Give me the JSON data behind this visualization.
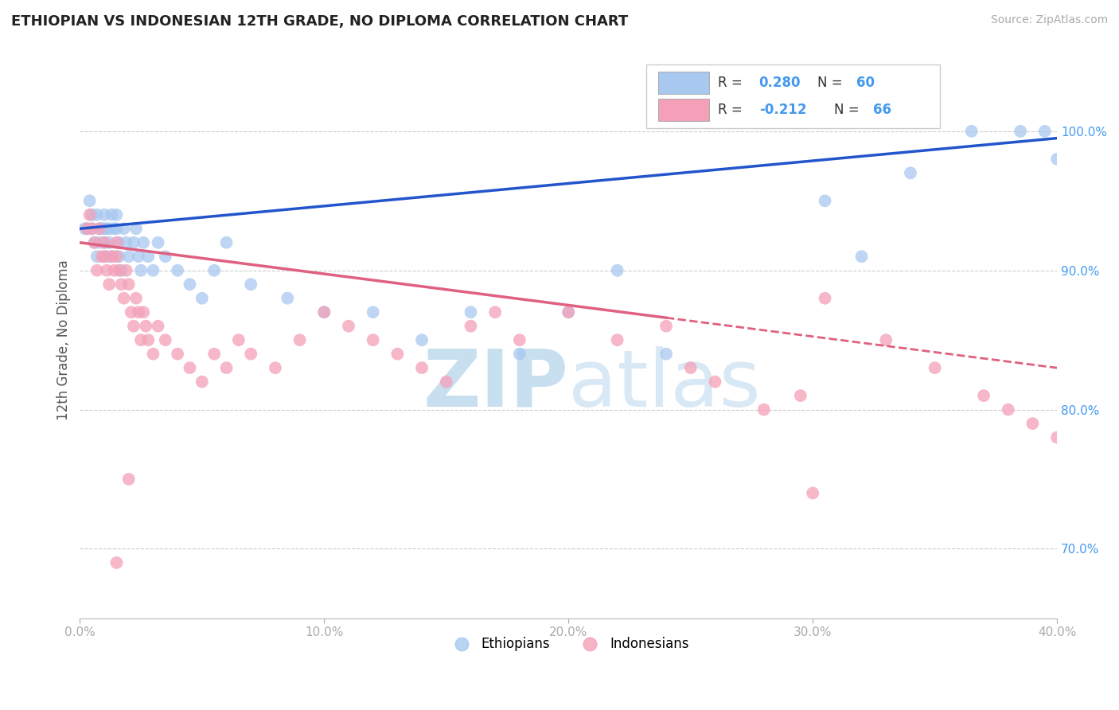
{
  "title": "ETHIOPIAN VS INDONESIAN 12TH GRADE, NO DIPLOMA CORRELATION CHART",
  "source": "Source: ZipAtlas.com",
  "ylabel": "12th Grade, No Diploma",
  "xlim": [
    0.0,
    40.0
  ],
  "ylim": [
    65.0,
    105.0
  ],
  "yticks": [
    70.0,
    80.0,
    90.0,
    100.0
  ],
  "xticks": [
    0.0,
    10.0,
    20.0,
    30.0,
    40.0
  ],
  "color_ethiopian": "#A8C8F0",
  "color_indonesian": "#F4A0B8",
  "color_line_ethiopian": "#2255CC",
  "color_line_indonesian": "#E06080",
  "color_axis_labels": "#4499EE",
  "color_title": "#222222",
  "watermark_color": "#C8DFF0",
  "eth_line_x0": 0.0,
  "eth_line_y0": 93.0,
  "eth_line_x1": 40.0,
  "eth_line_y1": 99.5,
  "ind_line_x0": 0.0,
  "ind_line_y0": 92.0,
  "ind_line_x1": 40.0,
  "ind_line_y1": 83.0,
  "ind_solid_end": 24.0,
  "ethiopian_x": [
    0.2,
    0.3,
    0.4,
    0.5,
    0.5,
    0.6,
    0.7,
    0.7,
    0.8,
    0.8,
    0.9,
    1.0,
    1.0,
    1.0,
    1.1,
    1.1,
    1.2,
    1.2,
    1.3,
    1.3,
    1.4,
    1.5,
    1.5,
    1.6,
    1.6,
    1.7,
    1.8,
    1.9,
    2.0,
    2.2,
    2.3,
    2.4,
    2.5,
    2.6,
    2.8,
    3.0,
    3.2,
    3.5,
    4.0,
    4.5,
    5.0,
    5.5,
    6.0,
    7.0,
    8.5,
    10.0,
    12.0,
    14.0,
    16.0,
    18.0,
    20.0,
    22.0,
    24.0,
    30.5,
    32.0,
    34.0,
    36.5,
    38.5,
    39.5,
    40.0
  ],
  "ethiopian_y": [
    93,
    93,
    95,
    94,
    93,
    92,
    91,
    94,
    93,
    92,
    93,
    94,
    93,
    92,
    93,
    91,
    93,
    92,
    91,
    94,
    93,
    94,
    93,
    92,
    91,
    90,
    93,
    92,
    91,
    92,
    93,
    91,
    90,
    92,
    91,
    90,
    92,
    91,
    90,
    89,
    88,
    90,
    92,
    89,
    88,
    87,
    87,
    85,
    87,
    84,
    87,
    90,
    84,
    95,
    91,
    97,
    100,
    100,
    100,
    98
  ],
  "indonesian_x": [
    0.3,
    0.4,
    0.5,
    0.6,
    0.7,
    0.8,
    0.9,
    1.0,
    1.0,
    1.1,
    1.2,
    1.3,
    1.4,
    1.5,
    1.5,
    1.6,
    1.7,
    1.8,
    1.9,
    2.0,
    2.1,
    2.2,
    2.3,
    2.4,
    2.5,
    2.6,
    2.7,
    2.8,
    3.0,
    3.2,
    3.5,
    4.0,
    4.5,
    5.0,
    5.5,
    6.0,
    6.5,
    7.0,
    8.0,
    9.0,
    10.0,
    11.0,
    12.0,
    13.0,
    14.0,
    15.0,
    16.0,
    17.0,
    18.0,
    20.0,
    22.0,
    24.0,
    25.0,
    26.0,
    28.0,
    29.5,
    30.5,
    33.0,
    35.0,
    37.0,
    38.0,
    39.0,
    40.0,
    1.5,
    2.0,
    30.0
  ],
  "indonesian_y": [
    93,
    94,
    93,
    92,
    90,
    93,
    91,
    92,
    91,
    90,
    89,
    91,
    90,
    92,
    91,
    90,
    89,
    88,
    90,
    89,
    87,
    86,
    88,
    87,
    85,
    87,
    86,
    85,
    84,
    86,
    85,
    84,
    83,
    82,
    84,
    83,
    85,
    84,
    83,
    85,
    87,
    86,
    85,
    84,
    83,
    82,
    86,
    87,
    85,
    87,
    85,
    86,
    83,
    82,
    80,
    81,
    88,
    85,
    83,
    81,
    80,
    79,
    78,
    69,
    75,
    74
  ]
}
